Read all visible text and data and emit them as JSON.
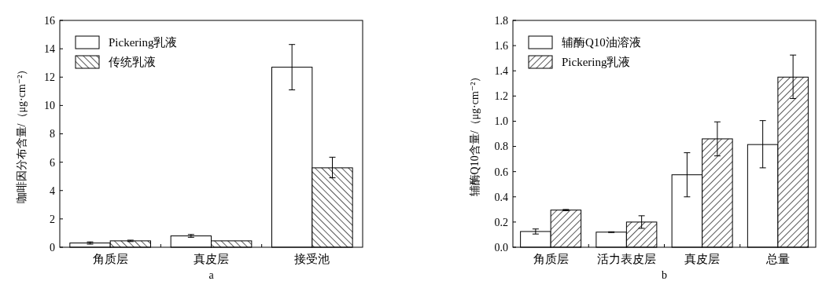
{
  "chart_data": [
    {
      "type": "bar",
      "xlabel": "a",
      "ylabel": "咖啡因分布含量/（μg·cm⁻²）",
      "categories": [
        "角质层",
        "真皮层",
        "接受池"
      ],
      "series": [
        {
          "name": "Pickering乳液",
          "color": "#ffffff",
          "values": [
            0.3,
            0.8,
            12.7
          ],
          "errors": [
            0.08,
            0.1,
            [
              11.1,
              14.3
            ]
          ]
        },
        {
          "name": "传统乳液",
          "color": "#000000",
          "values": [
            0.45,
            0.45,
            5.6
          ],
          "errors": [
            0.05,
            null,
            [
              4.9,
              6.35
            ]
          ]
        }
      ],
      "ylim": [
        0,
        16
      ],
      "yticks": [
        0,
        2,
        4,
        6,
        8,
        10,
        12,
        14,
        16
      ],
      "legend": "top left"
    },
    {
      "type": "bar",
      "xlabel": "b",
      "ylabel": "辅酶Q10含量/（μg·cm⁻²）",
      "categories": [
        "角质层",
        "活力表皮层",
        "真皮层",
        "总量"
      ],
      "series": [
        {
          "name": "辅酶Q10油溶液",
          "color": "#ffffff",
          "values": [
            0.125,
            0.12,
            0.575,
            0.815
          ],
          "errors": [
            [
              0.105,
              0.145
            ],
            0.003,
            [
              0.4,
              0.75
            ],
            [
              0.63,
              1.005
            ]
          ]
        },
        {
          "name": "Pickering乳液",
          "color": "#000000",
          "values": [
            0.295,
            0.2,
            0.86,
            1.35
          ],
          "errors": [
            0.005,
            [
              0.15,
              0.25
            ],
            [
              0.725,
              0.995
            ],
            [
              1.18,
              1.525
            ]
          ]
        }
      ],
      "ylim": [
        0,
        1.8
      ],
      "yticks": [
        {
          "value": 0,
          "label": "0.0"
        },
        {
          "value": 0.2,
          "label": "0.2"
        },
        {
          "value": 0.4,
          "label": "0.4"
        },
        {
          "value": 0.6,
          "label": "0.6"
        },
        {
          "value": 0.8,
          "label": "0.8"
        },
        {
          "value": 1.0,
          "label": "1.0"
        },
        {
          "value": 1.2,
          "label": "1.2"
        },
        {
          "value": 1.4,
          "label": "1.4"
        },
        {
          "value": 1.6,
          "label": "1.6"
        },
        {
          "value": 1.8,
          "label": "1.8"
        }
      ],
      "legend": "top left"
    }
  ]
}
